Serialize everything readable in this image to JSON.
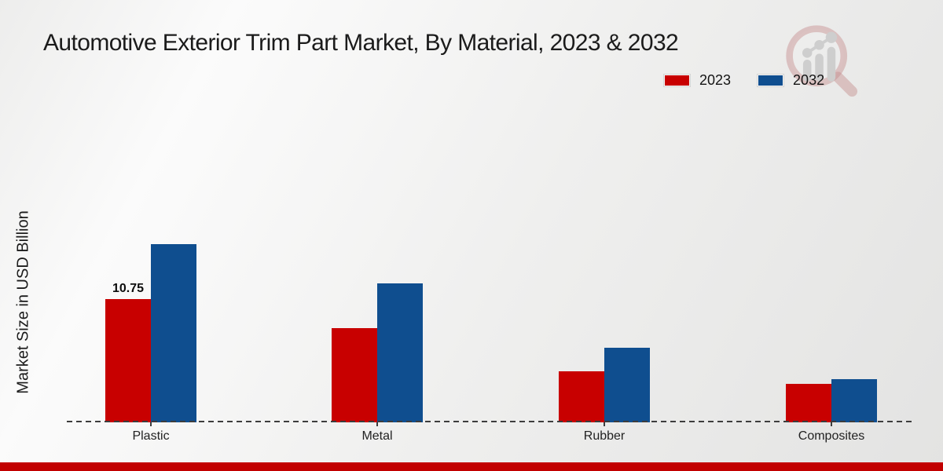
{
  "title": "Automotive Exterior Trim Part Market, By Material, 2023 & 2032",
  "ylabel": "Market Size in USD Billion",
  "legend": [
    {
      "label": "2023",
      "color": "#c80000"
    },
    {
      "label": "2032",
      "color": "#0f4e8f"
    }
  ],
  "chart_data": {
    "type": "bar",
    "categories": [
      "Plastic",
      "Metal",
      "Rubber",
      "Composites"
    ],
    "series": [
      {
        "name": "2023",
        "color": "#c80000",
        "values": [
          10.75,
          8.2,
          4.45,
          3.35
        ]
      },
      {
        "name": "2032",
        "color": "#0f4e8f",
        "values": [
          15.5,
          12.1,
          6.5,
          3.75
        ]
      }
    ],
    "data_labels": [
      {
        "series": "2023",
        "category": "Plastic",
        "text": "10.75"
      }
    ],
    "ylim": [
      0,
      18
    ],
    "grid": false,
    "legend_position": "top-right",
    "baseline_style": "dashed",
    "y_axis_ticks_visible": false
  },
  "colors": {
    "accent_red": "#c80000",
    "accent_blue": "#0f4e8f",
    "footer_bar": "#c20000",
    "axis_line": "#3d3d3d"
  },
  "watermark": {
    "icon": "market-research-magnifier-logo"
  }
}
